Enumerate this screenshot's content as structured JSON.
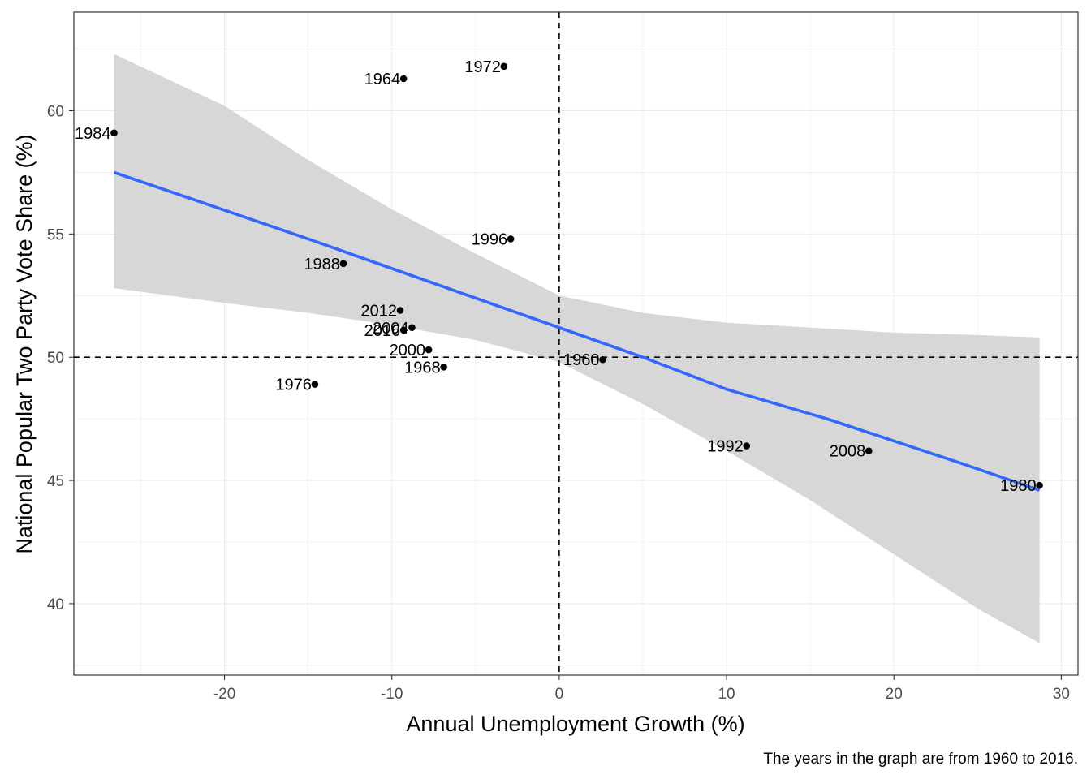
{
  "chart_data": {
    "type": "scatter",
    "xlabel": "Annual Unemployment Growth (%)",
    "ylabel": "National Popular Two Party Vote Share (%)",
    "caption": "The years in the graph are from 1960 to 2016.",
    "xlim": [
      -29,
      31
    ],
    "ylim": [
      37.1,
      64.0
    ],
    "x_ticks": [
      -20,
      -10,
      0,
      10,
      20,
      30
    ],
    "y_ticks": [
      40,
      45,
      50,
      55,
      60
    ],
    "x_tick_labels": [
      "-20",
      "-10",
      "0",
      "10",
      "20",
      "30"
    ],
    "y_tick_labels": [
      "40",
      "45",
      "50",
      "55",
      "60"
    ],
    "grid": true,
    "reference_lines": {
      "x": 0,
      "y": 50,
      "style": "dashed"
    },
    "points": [
      {
        "label": "1984",
        "x": -26.6,
        "y": 59.1
      },
      {
        "label": "1964",
        "x": -9.3,
        "y": 61.3
      },
      {
        "label": "1972",
        "x": -3.3,
        "y": 61.8
      },
      {
        "label": "1996",
        "x": -2.9,
        "y": 54.8
      },
      {
        "label": "1988",
        "x": -12.9,
        "y": 53.8
      },
      {
        "label": "2012",
        "x": -9.5,
        "y": 51.9
      },
      {
        "label": "2004",
        "x": -8.8,
        "y": 51.2
      },
      {
        "label": "2016",
        "x": -9.3,
        "y": 51.1
      },
      {
        "label": "2000",
        "x": -7.8,
        "y": 50.3
      },
      {
        "label": "1968",
        "x": -6.9,
        "y": 49.6
      },
      {
        "label": "1976",
        "x": -14.6,
        "y": 48.9
      },
      {
        "label": "1960",
        "x": 2.6,
        "y": 49.9
      },
      {
        "label": "1992",
        "x": 11.2,
        "y": 46.4
      },
      {
        "label": "2008",
        "x": 18.5,
        "y": 46.2
      },
      {
        "label": "1980",
        "x": 28.7,
        "y": 44.8
      }
    ],
    "fit_line": {
      "x": [
        -26.6,
        -21.0,
        -15.0,
        -10.0,
        -5.0,
        0.0,
        5.0,
        10.0,
        16.0,
        20.0,
        24.0,
        28.7
      ],
      "y": [
        57.5,
        56.2,
        54.8,
        53.6,
        52.4,
        51.2,
        50.0,
        48.7,
        47.5,
        46.6,
        45.7,
        44.6
      ]
    },
    "confidence_band": {
      "x": [
        -26.6,
        -20,
        -15,
        -10,
        -5,
        0,
        5,
        10,
        15,
        20,
        25,
        28.7
      ],
      "lower": [
        52.8,
        52.2,
        51.8,
        51.3,
        50.7,
        49.8,
        48.1,
        46.2,
        44.2,
        42.0,
        39.8,
        38.4
      ],
      "upper": [
        62.3,
        60.2,
        58.0,
        56.0,
        54.2,
        52.5,
        51.8,
        51.4,
        51.2,
        51.0,
        50.9,
        50.8
      ]
    },
    "colors": {
      "fit_line": "#3366ff",
      "band": "#d3d3d3",
      "points": "#000000",
      "grid": "#ebebeb",
      "reference": "#000000"
    }
  }
}
